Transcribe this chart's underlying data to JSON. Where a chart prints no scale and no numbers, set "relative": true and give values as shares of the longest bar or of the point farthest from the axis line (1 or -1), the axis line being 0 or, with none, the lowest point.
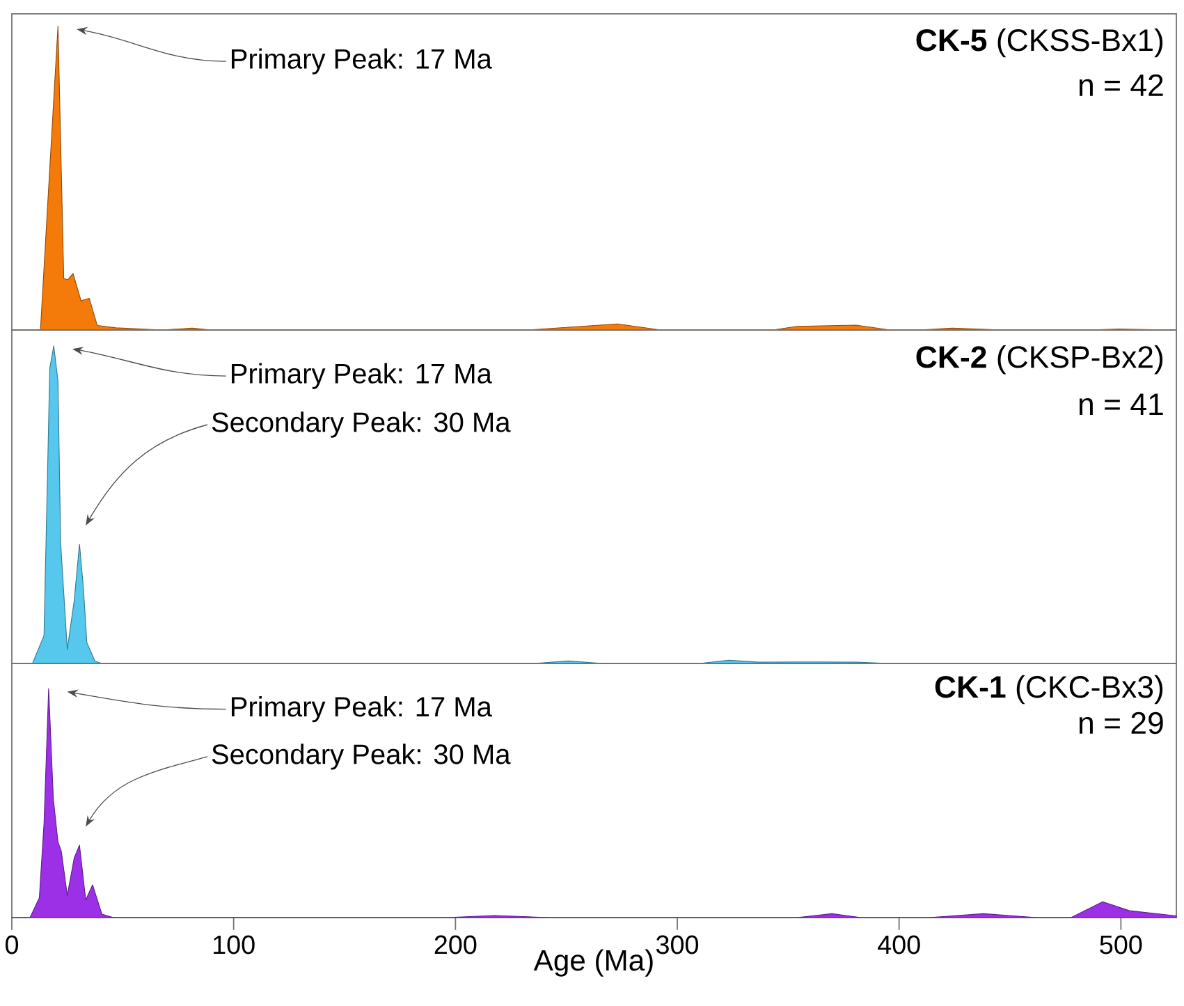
{
  "chart_data": [
    {
      "type": "area",
      "relative": true,
      "title": "**CK-5** (CKSS-Bx1)",
      "subtitle": "n = 42",
      "color": "#f47a0a",
      "xlim": [
        0,
        525
      ],
      "tick_labels": false,
      "x": [
        0,
        12.9,
        20.8,
        23.4,
        25.2,
        27.6,
        31.2,
        34.9,
        38.5,
        46.9,
        67.8,
        81.3,
        90,
        233,
        273,
        292.6,
        343,
        354,
        380.6,
        396,
        409,
        424,
        447,
        486,
        499,
        521,
        525
      ],
      "values": [
        0,
        0,
        1.0,
        0.17,
        0.165,
        0.186,
        0.096,
        0.104,
        0.015,
        0.007,
        0,
        0.006,
        0,
        0,
        0.02,
        0,
        0,
        0.012,
        0.016,
        0,
        0,
        0.006,
        0,
        0,
        0.003,
        0,
        0
      ],
      "annotations": [
        "Primary Peak: 17 Ma"
      ]
    },
    {
      "type": "area",
      "relative": true,
      "title": "**CK-2** (CKSP-Bx2)",
      "subtitle": "n = 41",
      "color": "#56c8ee",
      "xlim": [
        0,
        525
      ],
      "tick_labels": false,
      "x": [
        0,
        9.3,
        14.5,
        16.1,
        17.1,
        18.9,
        20.8,
        22.0,
        25.0,
        28.1,
        30.5,
        32.3,
        33.8,
        37.5,
        40.6,
        235.4,
        250.9,
        266.3,
        310,
        323.3,
        336.7,
        358.7,
        380.6,
        396,
        525
      ],
      "values": [
        0,
        0,
        0.088,
        0.6,
        0.93,
        1.0,
        0.89,
        0.38,
        0.044,
        0.197,
        0.376,
        0.234,
        0.066,
        0.007,
        0,
        0,
        0.008,
        0,
        0,
        0.01,
        0.004,
        0.005,
        0.004,
        0,
        0
      ],
      "annotations": [
        "Primary Peak: 17 Ma",
        "Secondary Peak: 30 Ma"
      ]
    },
    {
      "type": "area",
      "relative": true,
      "title": "**CK-1** (CKC-Bx3)",
      "subtitle": "n = 29",
      "color": "#9b30e6",
      "xlim": [
        0,
        525
      ],
      "tick_labels": "x",
      "xlabel": "Age (Ma)",
      "xticks": [
        0,
        100,
        200,
        300,
        400,
        500
      ],
      "x": [
        0,
        8.2,
        12.4,
        14.5,
        16.6,
        18.7,
        20.8,
        22.3,
        25.0,
        28.1,
        30.5,
        33.3,
        36.4,
        40.6,
        45.8,
        195.8,
        217.7,
        242,
        354,
        369.7,
        382.8,
        413.5,
        438,
        462,
        477.5,
        491.8,
        503.8,
        523.5,
        525
      ],
      "values": [
        0,
        0,
        0.087,
        0.41,
        1.0,
        0.52,
        0.33,
        0.29,
        0.097,
        0.26,
        0.316,
        0.077,
        0.143,
        0.015,
        0,
        0,
        0.009,
        0,
        0,
        0.017,
        0,
        0,
        0.017,
        0,
        0,
        0.069,
        0.03,
        0.009,
        0.008
      ],
      "annotations": [
        "Primary Peak: 17 Ma",
        "Secondary Peak: 30 Ma"
      ]
    }
  ]
}
